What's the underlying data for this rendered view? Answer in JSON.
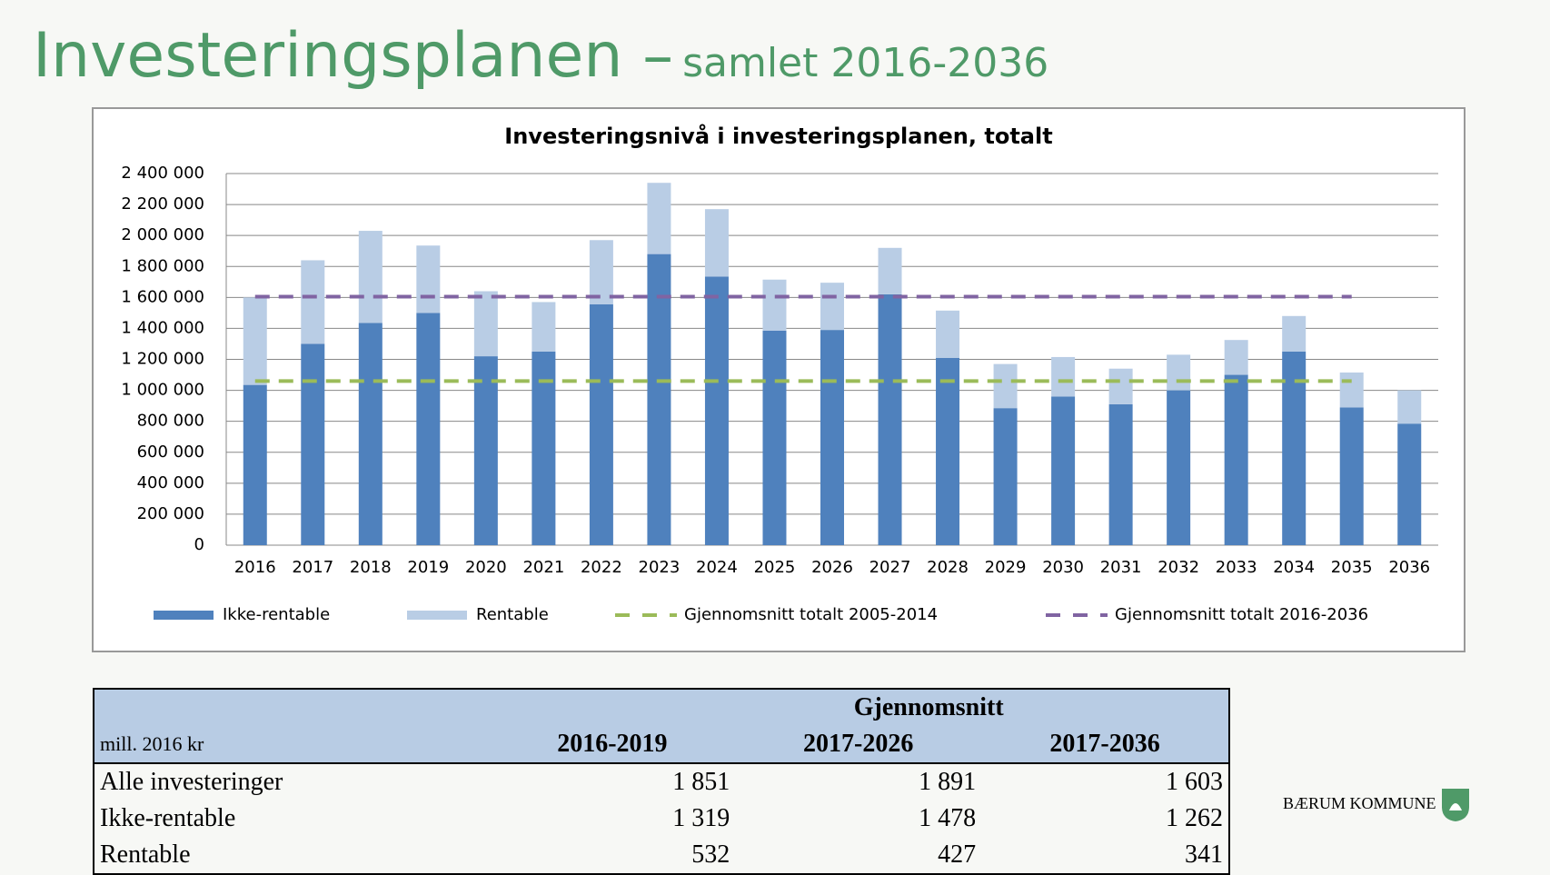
{
  "header": {
    "title": "Investeringsplanen –",
    "subtitle": "samlet 2016-2036"
  },
  "chart_data": {
    "type": "bar",
    "stacked": true,
    "title": "Investeringsnivå i investeringsplanen, totalt",
    "categories": [
      "2016",
      "2017",
      "2018",
      "2019",
      "2020",
      "2021",
      "2022",
      "2023",
      "2024",
      "2025",
      "2026",
      "2027",
      "2028",
      "2029",
      "2030",
      "2031",
      "2032",
      "2033",
      "2034",
      "2035",
      "2036"
    ],
    "series": [
      {
        "name": "Ikke-rentable",
        "type": "bar",
        "color": "#4f81bd",
        "values": [
          1035000,
          1300000,
          1435000,
          1500000,
          1220000,
          1250000,
          1555000,
          1880000,
          1735000,
          1385000,
          1390000,
          1620000,
          1210000,
          885000,
          960000,
          910000,
          1000000,
          1100000,
          1250000,
          890000,
          785000
        ]
      },
      {
        "name": "Rentable",
        "type": "bar",
        "color": "#b9cde5",
        "values": [
          565000,
          540000,
          595000,
          435000,
          420000,
          320000,
          415000,
          460000,
          435000,
          330000,
          305000,
          300000,
          305000,
          285000,
          255000,
          230000,
          230000,
          225000,
          230000,
          225000,
          215000
        ]
      },
      {
        "name": "Gjennomsnitt totalt 2005-2014",
        "type": "line",
        "dashed": true,
        "color": "#9bbb59",
        "values": [
          1060000,
          1060000,
          1060000,
          1060000,
          1060000,
          1060000,
          1060000,
          1060000,
          1060000,
          1060000,
          1060000,
          1060000,
          1060000,
          1060000,
          1060000,
          1060000,
          1060000,
          1060000,
          1060000,
          1060000,
          null
        ]
      },
      {
        "name": "Gjennomsnitt totalt 2016-2036",
        "type": "line",
        "dashed": true,
        "color": "#8064a2",
        "values": [
          1605000,
          1605000,
          1605000,
          1605000,
          1605000,
          1605000,
          1605000,
          1605000,
          1605000,
          1605000,
          1605000,
          1605000,
          1605000,
          1605000,
          1605000,
          1605000,
          1605000,
          1605000,
          1605000,
          1605000,
          null
        ]
      }
    ],
    "ylim": [
      0,
      2400000
    ],
    "yticks": [
      0,
      {
        "value": 200000,
        "label": "200 000"
      },
      {
        "value": 400000,
        "label": "400 000"
      },
      {
        "value": 600000,
        "label": "600 000"
      },
      {
        "value": 800000,
        "label": "800 000"
      },
      {
        "value": 1000000,
        "label": "1 000 000"
      },
      {
        "value": 1200000,
        "label": "1 200 000"
      },
      {
        "value": 1400000,
        "label": "1 400 000"
      },
      {
        "value": 1600000,
        "label": "1 600 000"
      },
      {
        "value": 1800000,
        "label": "1 800 000"
      },
      {
        "value": 2000000,
        "label": "2 000 000"
      },
      {
        "value": 2200000,
        "label": "2 200 000"
      },
      {
        "value": 2400000,
        "label": "2 400 000"
      }
    ],
    "grid": true,
    "legend": "bottom"
  },
  "table": {
    "group_header": "Gjennomsnitt",
    "unit": "mill. 2016 kr",
    "columns": [
      "2016-2019",
      "2017-2026",
      "2017-2036"
    ],
    "rows": [
      [
        "Alle investeringer",
        "1 851",
        "1 891",
        "1 603"
      ],
      [
        "Ikke-rentable",
        "1 319",
        "1 478",
        "1 262"
      ],
      [
        "Rentable",
        "532",
        "427",
        "341"
      ]
    ]
  },
  "logo": {
    "text": "BÆRUM KOMMUNE"
  }
}
